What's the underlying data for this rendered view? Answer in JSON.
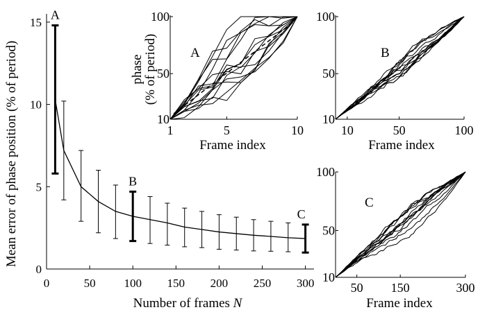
{
  "chart_data": [
    {
      "type": "line",
      "xlabel": "Number of frames",
      "xlabel_italic": "N",
      "ylabel": "Mean error of phase position (% of period)",
      "xlim": [
        0,
        310
      ],
      "ylim": [
        0,
        15.5
      ],
      "xticks": [
        "0",
        "50",
        "100",
        "150",
        "200",
        "250",
        "300"
      ],
      "yticks": [
        "0",
        "5",
        "10",
        "15"
      ],
      "series": [
        {
          "x": [
            10,
            20,
            40,
            60,
            80,
            100,
            120,
            140,
            160,
            180,
            200,
            220,
            240,
            260,
            280,
            300
          ],
          "values": [
            10.3,
            7.2,
            5.0,
            4.1,
            3.5,
            3.2,
            3.0,
            2.8,
            2.55,
            2.4,
            2.25,
            2.15,
            2.05,
            1.98,
            1.9,
            1.85
          ],
          "err_low": [
            5.8,
            4.2,
            2.9,
            2.2,
            1.85,
            1.7,
            1.55,
            1.45,
            1.35,
            1.3,
            1.2,
            1.15,
            1.1,
            1.08,
            1.05,
            1.0
          ],
          "err_high": [
            14.8,
            10.2,
            7.2,
            6.0,
            5.1,
            4.7,
            4.4,
            4.0,
            3.7,
            3.5,
            3.3,
            3.15,
            3.0,
            2.9,
            2.8,
            2.7
          ]
        }
      ],
      "highlighted": [
        {
          "label": "A",
          "x": 10
        },
        {
          "label": "B",
          "x": 100
        },
        {
          "label": "C",
          "x": 300
        }
      ]
    },
    {
      "type": "line",
      "label": "A",
      "xlabel": "Frame index",
      "ylabel": "phase",
      "ylabel2": "(% of period)",
      "xlim": [
        1,
        10
      ],
      "ylim": [
        10,
        100
      ],
      "xticks": [
        "1",
        "5",
        "10"
      ],
      "yticks": [
        "10",
        "50",
        "100"
      ]
    },
    {
      "type": "line",
      "label": "B",
      "xlabel": "Frame index",
      "xlim": [
        1,
        100
      ],
      "ylim": [
        10,
        100
      ],
      "xticks": [
        "10",
        "50",
        "100"
      ],
      "yticks": [
        "10",
        "50",
        "100"
      ]
    },
    {
      "type": "line",
      "label": "C",
      "xlabel": "Frame index",
      "xlim": [
        1,
        300
      ],
      "ylim": [
        10,
        100
      ],
      "xticks": [
        "50",
        "150",
        "300"
      ],
      "yticks": [
        "10",
        "50",
        "100"
      ]
    }
  ]
}
